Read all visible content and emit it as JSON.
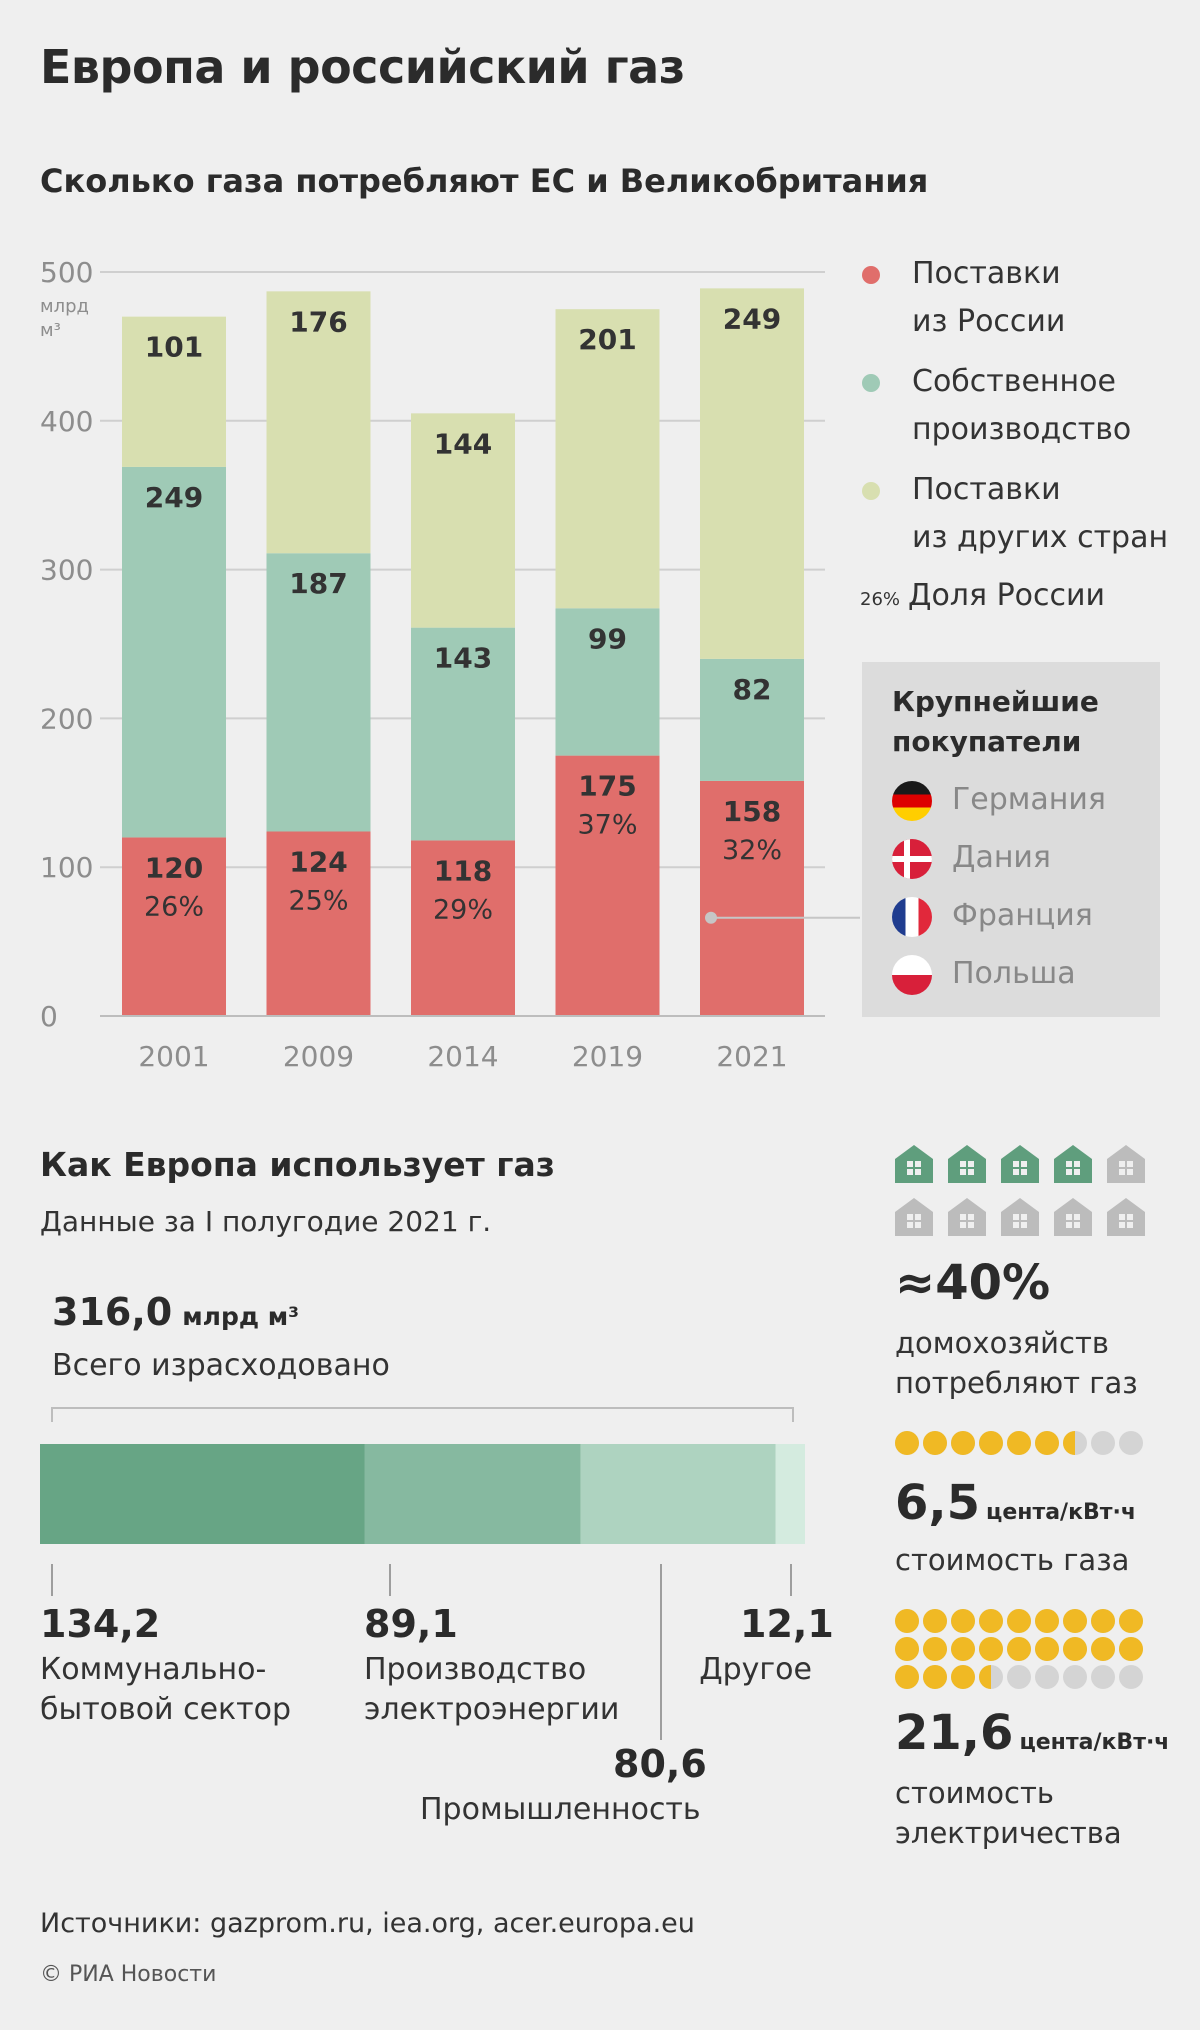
{
  "title": "Европа и российский газ",
  "chart_title": "Сколько газа потребляют ЕС и Великобритания",
  "chart_data": [
    {
      "type": "bar",
      "stacked": true,
      "title": "Сколько газа потребляют ЕС и Великобритания",
      "categories": [
        "2001",
        "2009",
        "2014",
        "2019",
        "2021"
      ],
      "series": [
        {
          "name": "Поставки из России",
          "values": [
            120,
            124,
            118,
            175,
            158
          ],
          "color": "#e06e6b"
        },
        {
          "name": "Собственное производство",
          "values": [
            249,
            187,
            143,
            99,
            82
          ],
          "color": "#9fcab6"
        },
        {
          "name": "Поставки из других стран",
          "values": [
            101,
            176,
            144,
            201,
            249
          ],
          "color": "#d8dfb0"
        }
      ],
      "russia_share": [
        "26%",
        "25%",
        "29%",
        "37%",
        "32%"
      ],
      "ylim": [
        0,
        500
      ],
      "yticks": [
        0,
        100,
        200,
        300,
        400,
        500
      ],
      "yunit": [
        "млрд",
        "м³"
      ],
      "grid": true,
      "legend_position": "right"
    },
    {
      "type": "bar",
      "stacked": true,
      "orientation": "horizontal",
      "title": "Как Европа использует газ",
      "total": 316.0,
      "categories": [
        "Коммунально-бытовой сектор",
        "Производство электроэнергии",
        "Промышленность",
        "Другое"
      ],
      "values": [
        134.2,
        89.1,
        80.6,
        12.1
      ],
      "colors": [
        "#67a585",
        "#86b9a0",
        "#aed3c0",
        "#d4ebdf"
      ]
    }
  ],
  "legend": [
    {
      "line1": "Поставки",
      "line2": "из России",
      "color": "#e06e6b"
    },
    {
      "line1": "Собственное",
      "line2": "производство",
      "color": "#9fcab6"
    },
    {
      "line1": "Поставки",
      "line2": "из других стран",
      "color": "#d8dfb0"
    }
  ],
  "share_note": {
    "small": "26%",
    "label": "Доля России"
  },
  "buyers": {
    "title_line1": "Крупнейшие",
    "title_line2": "покупатели",
    "items": [
      "Германия",
      "Дания",
      "Франция",
      "Польша"
    ]
  },
  "usage": {
    "title": "Как Европа использует газ",
    "subtitle": "Данные за I полугодие 2021 г.",
    "total_value": "316,0",
    "total_unit": "млрд м³",
    "total_label": "Всего израсходовано",
    "items": [
      {
        "value": "134,2",
        "line1": "Коммунально-",
        "line2": "бытовой сектор"
      },
      {
        "value": "89,1",
        "line1": "Производство",
        "line2": "электроэнергии"
      },
      {
        "value": "80,6",
        "line1": "Промышленность",
        "line2": ""
      },
      {
        "value": "12,1",
        "line1": "Другое",
        "line2": ""
      }
    ]
  },
  "stats": {
    "households": {
      "value": "≈40%",
      "line1": "домохозяйств",
      "line2": "потребляют газ",
      "icons_filled": 4,
      "icons_total": 10
    },
    "gas_price": {
      "value": "6,5",
      "unit": "цента/кВт·ч",
      "label": "стоимость газа",
      "dots": 6.5,
      "dots_total": 9
    },
    "electricity_price": {
      "value": "21,6",
      "unit": "цента/кВт·ч",
      "line1": "стоимость",
      "line2": "электричества",
      "dots": 21.6,
      "dots_total": 27
    }
  },
  "sources": "Источники: gazprom.ru, iea.org, acer.europa.eu",
  "copyright": "© РИА Новости"
}
